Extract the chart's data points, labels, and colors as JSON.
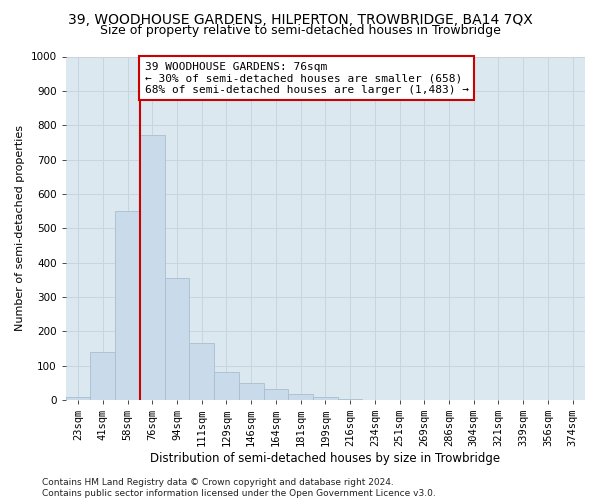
{
  "title1": "39, WOODHOUSE GARDENS, HILPERTON, TROWBRIDGE, BA14 7QX",
  "title2": "Size of property relative to semi-detached houses in Trowbridge",
  "xlabel": "Distribution of semi-detached houses by size in Trowbridge",
  "ylabel": "Number of semi-detached properties",
  "categories": [
    "23sqm",
    "41sqm",
    "58sqm",
    "76sqm",
    "94sqm",
    "111sqm",
    "129sqm",
    "146sqm",
    "164sqm",
    "181sqm",
    "199sqm",
    "216sqm",
    "234sqm",
    "251sqm",
    "269sqm",
    "286sqm",
    "304sqm",
    "321sqm",
    "339sqm",
    "356sqm",
    "374sqm"
  ],
  "values": [
    8,
    140,
    550,
    770,
    355,
    165,
    82,
    50,
    33,
    17,
    8,
    3,
    0,
    0,
    0,
    0,
    0,
    0,
    0,
    0,
    0
  ],
  "bar_color": "#c9daea",
  "bar_edge_color": "#a8bfcf",
  "property_line_index": 3,
  "property_line_color": "#cc0000",
  "annotation_text": "39 WOODHOUSE GARDENS: 76sqm\n← 30% of semi-detached houses are smaller (658)\n68% of semi-detached houses are larger (1,483) →",
  "annotation_box_color": "#ffffff",
  "annotation_box_edge_color": "#cc0000",
  "ylim": [
    0,
    1000
  ],
  "yticks": [
    0,
    100,
    200,
    300,
    400,
    500,
    600,
    700,
    800,
    900,
    1000
  ],
  "grid_color": "#c8d4e0",
  "background_color": "#dce8f0",
  "footnote": "Contains HM Land Registry data © Crown copyright and database right 2024.\nContains public sector information licensed under the Open Government Licence v3.0.",
  "title1_fontsize": 10,
  "title2_fontsize": 9,
  "xlabel_fontsize": 8.5,
  "ylabel_fontsize": 8,
  "tick_fontsize": 7.5,
  "annotation_fontsize": 8,
  "footnote_fontsize": 6.5
}
